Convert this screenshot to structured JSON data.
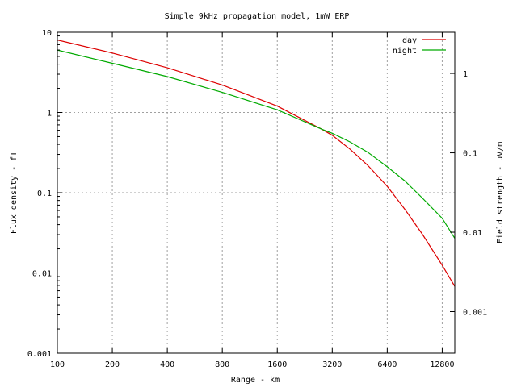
{
  "chart_data": {
    "type": "line",
    "title": "Simple 9kHz propagation model, 1mW ERP",
    "xlabel": "Range - km",
    "ylabel": "Flux density - fT",
    "y2label": "Field strength - uV/m",
    "xscale": "log",
    "yscale": "log",
    "xlim": [
      100,
      15000
    ],
    "ylim": [
      0.001,
      10
    ],
    "y2lim": [
      0.0003,
      3.3
    ],
    "grid": true,
    "legend_position": "top-right",
    "x_ticks": [
      "100",
      "200",
      "400",
      "800",
      "1600",
      "3200",
      "6400",
      "12800"
    ],
    "y_ticks": [
      "0.001",
      "0.01",
      "0.1",
      "1",
      "10"
    ],
    "y2_ticks": [
      "0.001",
      "0.01",
      "0.1",
      "1"
    ],
    "series": [
      {
        "name": "day",
        "color": "#dd0000",
        "x": [
          100,
          200,
          400,
          800,
          1600,
          2800,
          3200,
          4000,
          5000,
          6400,
          8000,
          10000,
          12800,
          15000
        ],
        "y": [
          8.0,
          5.5,
          3.6,
          2.2,
          1.2,
          0.62,
          0.52,
          0.35,
          0.22,
          0.12,
          0.062,
          0.03,
          0.0125,
          0.0068
        ]
      },
      {
        "name": "night",
        "color": "#00aa00",
        "x": [
          100,
          200,
          400,
          800,
          1600,
          2800,
          3200,
          4000,
          5000,
          6400,
          8000,
          10000,
          12800,
          15000
        ],
        "y": [
          6.0,
          4.1,
          2.8,
          1.78,
          1.08,
          0.62,
          0.55,
          0.43,
          0.32,
          0.21,
          0.14,
          0.085,
          0.048,
          0.027
        ]
      }
    ]
  }
}
